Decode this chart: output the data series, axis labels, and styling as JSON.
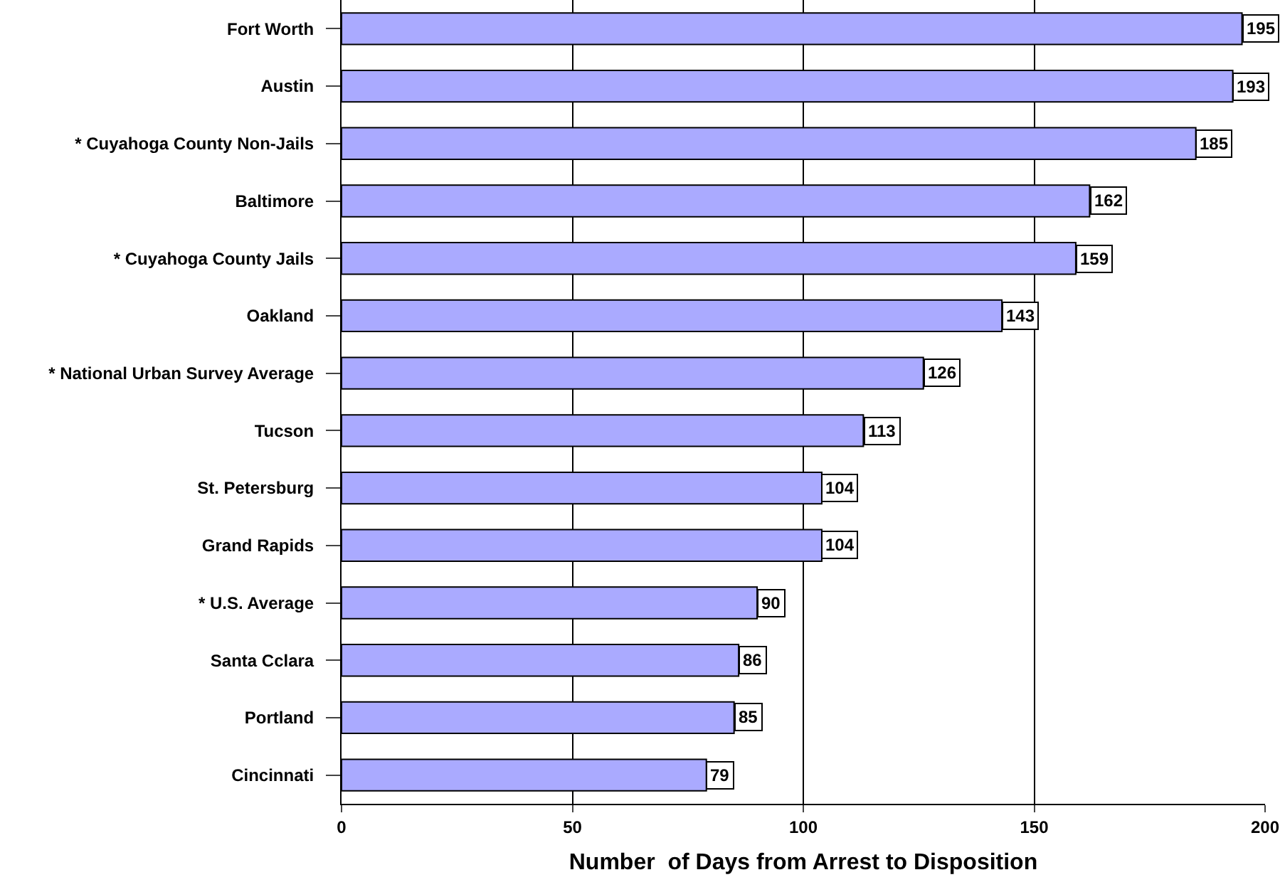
{
  "chart_data": {
    "type": "bar",
    "orientation": "horizontal",
    "categories": [
      "Fort Worth",
      "Austin",
      "* Cuyahoga County Non-Jails",
      "Baltimore",
      "* Cuyahoga County Jails",
      "Oakland",
      "* National Urban Survey Average",
      "Tucson",
      "St. Petersburg",
      "Grand Rapids",
      "* U.S. Average",
      "Santa Cclara",
      "Portland",
      "Cincinnati"
    ],
    "values": [
      195,
      193,
      185,
      162,
      159,
      143,
      126,
      113,
      104,
      104,
      90,
      86,
      85,
      79
    ],
    "color": "#aaaaff",
    "xlabel": "Number  of Days from Arrest to Disposition",
    "xlim": [
      0,
      200
    ],
    "xticks": [
      0,
      50,
      100,
      150,
      200
    ],
    "grid": "x",
    "data_labels": true,
    "legend": false
  }
}
